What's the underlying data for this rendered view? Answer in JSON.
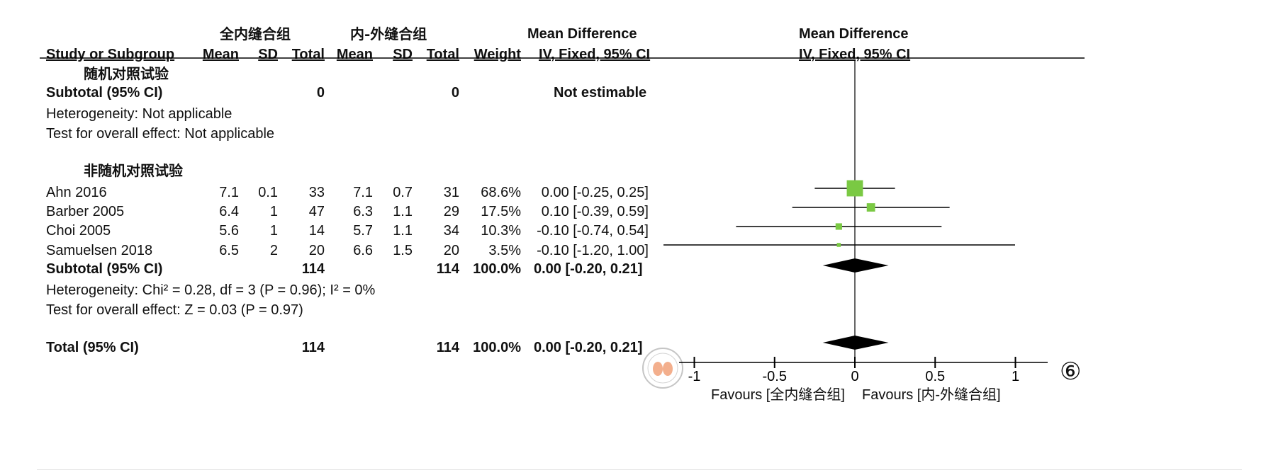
{
  "header": {
    "group1": "全内缝合组",
    "group2": "内-外缝合组",
    "md_title": "Mean Difference",
    "md_method": "IV, Fixed, 95% CI",
    "plot_title": "Mean Difference",
    "plot_method": "IV, Fixed, 95% CI",
    "col_study": "Study or Subgroup",
    "col_mean": "Mean",
    "col_sd": "SD",
    "col_total": "Total",
    "col_weight": "Weight"
  },
  "subgroup1": {
    "title": "随机对照试验",
    "subtotal_label": "Subtotal (95% CI)",
    "total1": "0",
    "total2": "0",
    "estimate": "Not estimable",
    "heterogeneity": "Heterogeneity: Not applicable",
    "overall": "Test for overall effect: Not applicable"
  },
  "subgroup2": {
    "title": "非随机对照试验",
    "studies": [
      {
        "name": "Ahn 2016",
        "mean1": "7.1",
        "sd1": "0.1",
        "total1": "33",
        "mean2": "7.1",
        "sd2": "0.7",
        "total2": "31",
        "weight": "68.6%",
        "ci": "0.00 [-0.25, 0.25]"
      },
      {
        "name": "Barber 2005",
        "mean1": "6.4",
        "sd1": "1",
        "total1": "47",
        "mean2": "6.3",
        "sd2": "1.1",
        "total2": "29",
        "weight": "17.5%",
        "ci": "0.10 [-0.39, 0.59]"
      },
      {
        "name": "Choi 2005",
        "mean1": "5.6",
        "sd1": "1",
        "total1": "14",
        "mean2": "5.7",
        "sd2": "1.1",
        "total2": "34",
        "weight": "10.3%",
        "ci": "-0.10 [-0.74, 0.54]"
      },
      {
        "name": "Samuelsen 2018",
        "mean1": "6.5",
        "sd1": "2",
        "total1": "20",
        "mean2": "6.6",
        "sd2": "1.5",
        "total2": "20",
        "weight": "3.5%",
        "ci": "-0.10 [-1.20, 1.00]"
      }
    ],
    "subtotal_label": "Subtotal (95% CI)",
    "total1": "114",
    "total2": "114",
    "weight": "100.0%",
    "ci": "0.00 [-0.20, 0.21]",
    "heterogeneity": "Heterogeneity: Chi² = 0.28, df = 3 (P = 0.96); I² = 0%",
    "overall": "Test for overall effect: Z = 0.03 (P = 0.97)"
  },
  "total": {
    "label": "Total (95% CI)",
    "total1": "114",
    "total2": "114",
    "weight": "100.0%",
    "ci": "0.00 [-0.20, 0.21]"
  },
  "axis": {
    "favours_left": "Favours [全内缝合组]",
    "favours_right": "Favours [内-外缝合组]"
  },
  "figure_marker": "⑥",
  "colors": {
    "square": "#7ac943",
    "diamond": "#000000"
  },
  "chart_data": {
    "type": "forest",
    "xlim": [
      -1,
      1
    ],
    "ticks": [
      -1,
      -0.5,
      0,
      0.5,
      1
    ],
    "tick_labels": [
      "-1",
      "-0.5",
      "0",
      "0.5",
      "1"
    ],
    "studies": [
      {
        "name": "Ahn 2016",
        "md": 0.0,
        "lower": -0.25,
        "upper": 0.25,
        "weight": 68.6
      },
      {
        "name": "Barber 2005",
        "md": 0.1,
        "lower": -0.39,
        "upper": 0.59,
        "weight": 17.5
      },
      {
        "name": "Choi 2005",
        "md": -0.1,
        "lower": -0.74,
        "upper": 0.54,
        "weight": 10.3
      },
      {
        "name": "Samuelsen 2018",
        "md": -0.1,
        "lower": -1.2,
        "upper": 1.0,
        "weight": 3.5
      }
    ],
    "pooled": [
      {
        "name": "Subtotal (95% CI)",
        "md": 0.0,
        "lower": -0.2,
        "upper": 0.21
      },
      {
        "name": "Total (95% CI)",
        "md": 0.0,
        "lower": -0.2,
        "upper": 0.21
      }
    ]
  }
}
